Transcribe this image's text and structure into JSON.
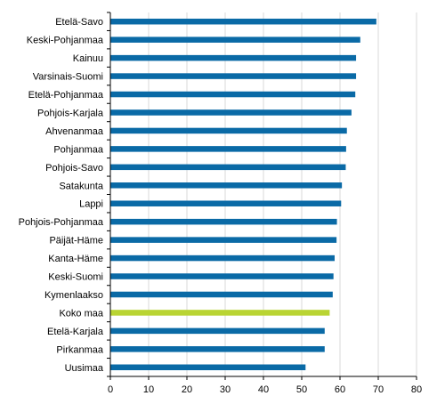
{
  "chart_data": {
    "type": "bar",
    "orientation": "horizontal",
    "categories": [
      "Etelä-Savo",
      "Keski-Pohjanmaa",
      "Kainuu",
      "Varsinais-Suomi",
      "Etelä-Pohjanmaa",
      "Pohjois-Karjala",
      "Ahvenanmaa",
      "Pohjanmaa",
      "Pohjois-Savo",
      "Satakunta",
      "Lappi",
      "Pohjois-Pohjanmaa",
      "Päijät-Häme",
      "Kanta-Häme",
      "Keski-Suomi",
      "Kymenlaakso",
      "Koko maa",
      "Etelä-Karjala",
      "Pirkanmaa",
      "Uusimaa"
    ],
    "values": [
      69.5,
      65.3,
      64.2,
      64.2,
      64.0,
      63.0,
      61.8,
      61.6,
      61.5,
      60.5,
      60.3,
      59.2,
      59.1,
      58.6,
      58.3,
      58.1,
      57.3,
      56.0,
      56.0,
      51.0
    ],
    "highlight_category": "Koko maa",
    "colors": {
      "default": "#0a6aa6",
      "highlight": "#b9d433",
      "grid": "#d9d9d9",
      "axis": "#000000"
    },
    "xlim": [
      0,
      80
    ],
    "xticks": [
      0,
      10,
      20,
      30,
      40,
      50,
      60,
      70,
      80
    ],
    "grid": true,
    "title": "",
    "xlabel": "",
    "ylabel": ""
  }
}
